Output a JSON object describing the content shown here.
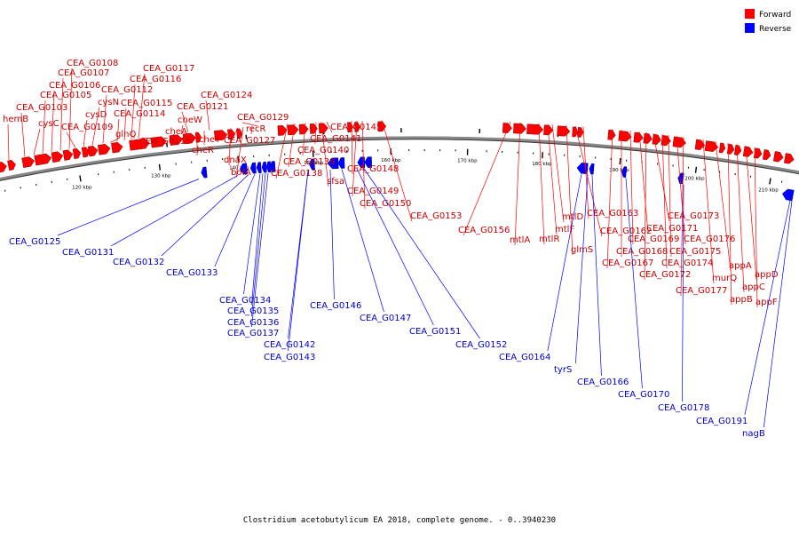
{
  "legend": {
    "forward_label": "Forward",
    "reverse_label": "Reverse",
    "forward_color": "#ff0000",
    "reverse_color": "#0000ff"
  },
  "caption": "Clostridium acetobutylicum EA 2018, complete genome. - 0..3940230",
  "ticks": [
    "120 kbp",
    "130 kbp",
    "140 kbp",
    "150 kbp",
    "160 kbp",
    "170 kbp",
    "180 kbp",
    "190 kbp",
    "200 kbp",
    "210 kbp"
  ],
  "forward_genes": [
    "hemB",
    "CEA_G0103",
    "cysC",
    "CEA_G0105",
    "CEA_G0106",
    "CEA_G0107",
    "CEA_G0108",
    "CEA_G0109",
    "cysD",
    "cysN",
    "CEA_G0112",
    "glnQ",
    "CEA_G0114",
    "CEA_G0115",
    "CEA_G0116",
    "CEA_G0117",
    "CEA_G0118",
    "cheA",
    "cheW",
    "CEA_G0121",
    "cheR",
    "cheY",
    "CEA_G0124",
    "dnaX",
    "CEA_G0127",
    "bofA",
    "recR",
    "CEA_G0129",
    "CEA_G0138",
    "CEA_G0139",
    "CEA_G0140",
    "sfsa",
    "CEA_G0141",
    "CEA_G0145",
    "CEA_G0148",
    "CEA_G0149",
    "CEA_G0150",
    "CEA_G0153",
    "CEA_G0156",
    "mtlA",
    "mtlR",
    "mtlF",
    "mtlD",
    "glmS",
    "CEA_G0162",
    "CEA_G0163",
    "CEA_G0167",
    "CEA_G0168",
    "CEA_G0169",
    "CEA_G0171",
    "CEA_G0172",
    "CEA_G0173",
    "CEA_G0174",
    "CEA_G0175",
    "CEA_G0176",
    "CEA_G0177",
    "murQ",
    "appA",
    "appB",
    "appC",
    "appD",
    "appF"
  ],
  "reverse_genes": [
    "CEA_G0125",
    "CEA_G0131",
    "CEA_G0132",
    "CEA_G0133",
    "CEA_G0134",
    "CEA_G0135",
    "CEA_G0136",
    "CEA_G0137",
    "CEA_G0142",
    "CEA_G0143",
    "CEA_G0146",
    "CEA_G0147",
    "CEA_G0151",
    "CEA_G0152",
    "CEA_G0164",
    "tyrS",
    "CEA_G0166",
    "CEA_G0170",
    "CEA_G0178",
    "CEA_G0191",
    "nagB"
  ]
}
